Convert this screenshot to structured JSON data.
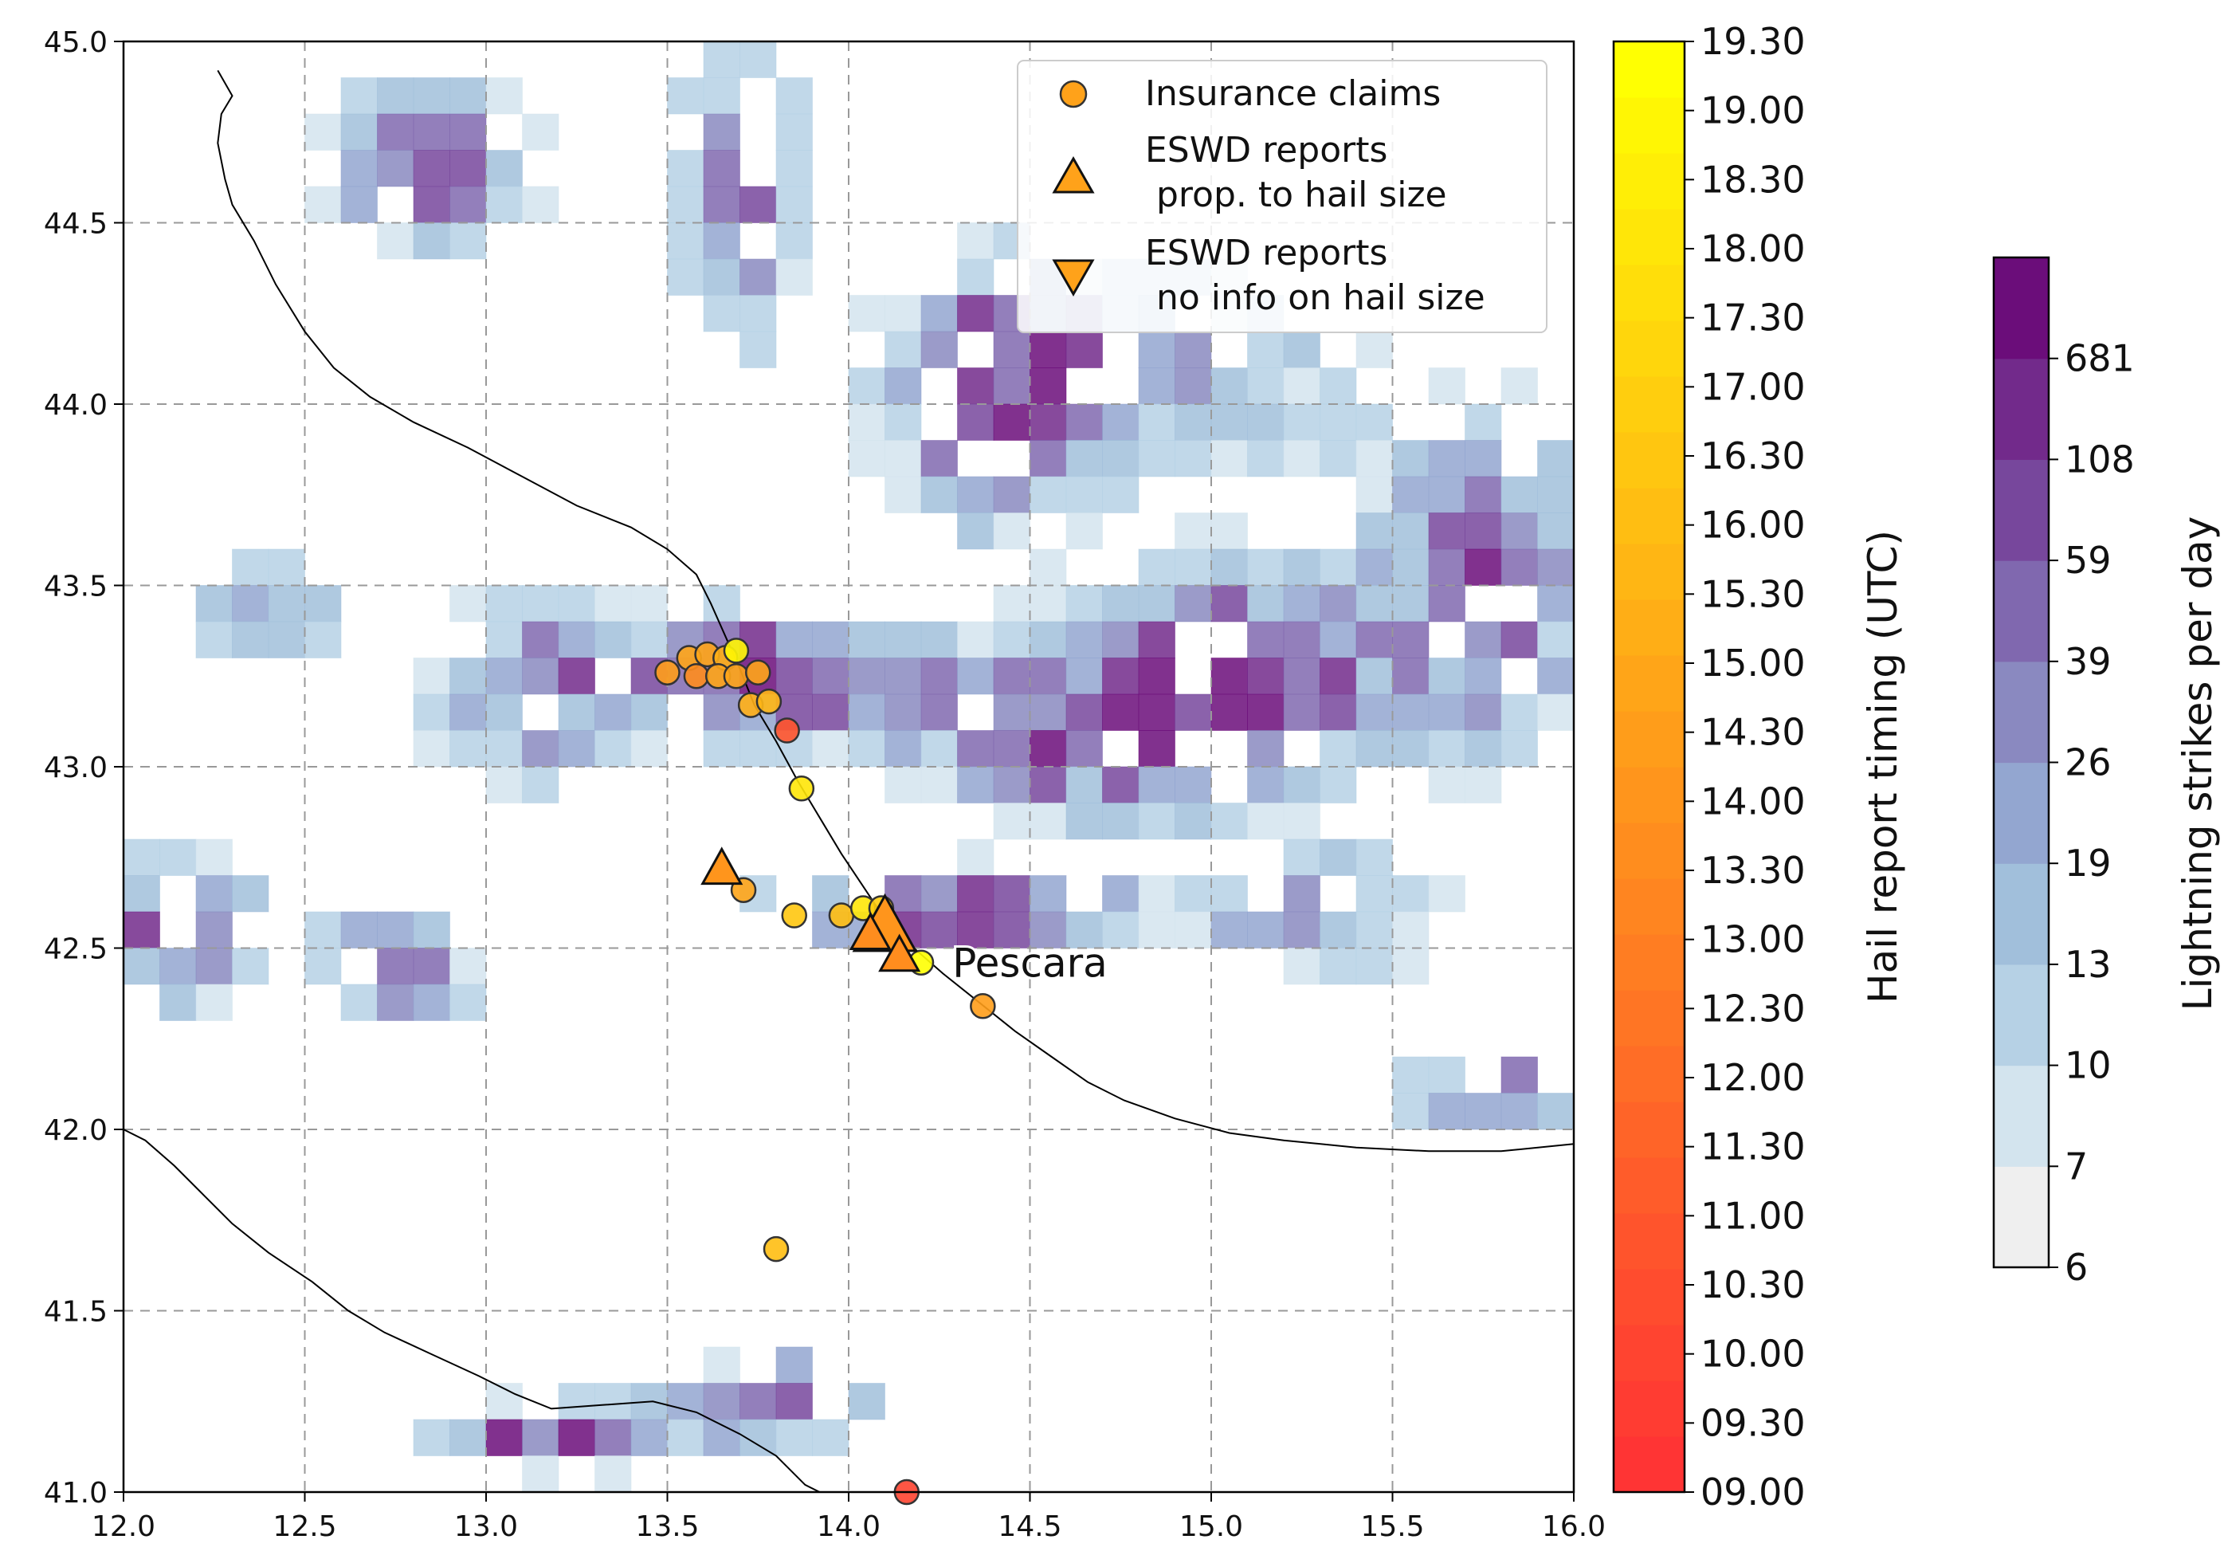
{
  "map": {
    "xlim": [
      12.0,
      16.0
    ],
    "ylim": [
      41.0,
      45.0
    ],
    "x_ticks": [
      {
        "v": 12.0,
        "label": "12.0"
      },
      {
        "v": 12.5,
        "label": "12.5"
      },
      {
        "v": 13.0,
        "label": "13.0"
      },
      {
        "v": 13.5,
        "label": "13.5"
      },
      {
        "v": 14.0,
        "label": "14.0"
      },
      {
        "v": 14.5,
        "label": "14.5"
      },
      {
        "v": 15.0,
        "label": "15.0"
      },
      {
        "v": 15.5,
        "label": "15.5"
      },
      {
        "v": 16.0,
        "label": "16.0"
      }
    ],
    "y_ticks": [
      {
        "v": 41.0,
        "label": "41.0"
      },
      {
        "v": 41.5,
        "label": "41.5"
      },
      {
        "v": 42.0,
        "label": "42.0"
      },
      {
        "v": 42.5,
        "label": "42.5"
      },
      {
        "v": 43.0,
        "label": "43.0"
      },
      {
        "v": 43.5,
        "label": "43.5"
      },
      {
        "v": 44.0,
        "label": "44.0"
      },
      {
        "v": 44.5,
        "label": "44.5"
      },
      {
        "v": 45.0,
        "label": "45.0"
      }
    ],
    "grid": "dashed",
    "city_label": {
      "text": "Pescara",
      "lon": 14.26,
      "lat": 42.46
    },
    "coastline": [
      [
        12.26,
        44.92
      ],
      [
        12.3,
        44.85
      ],
      [
        12.27,
        44.8
      ],
      [
        12.26,
        44.72
      ],
      [
        12.28,
        44.62
      ],
      [
        12.3,
        44.55
      ],
      [
        12.36,
        44.45
      ],
      [
        12.42,
        44.33
      ],
      [
        12.5,
        44.2
      ],
      [
        12.58,
        44.1
      ],
      [
        12.68,
        44.02
      ],
      [
        12.8,
        43.95
      ],
      [
        12.95,
        43.88
      ],
      [
        13.1,
        43.8
      ],
      [
        13.25,
        43.72
      ],
      [
        13.4,
        43.66
      ],
      [
        13.5,
        43.6
      ],
      [
        13.58,
        43.53
      ],
      [
        13.62,
        43.45
      ],
      [
        13.66,
        43.36
      ],
      [
        13.7,
        43.27
      ],
      [
        13.74,
        43.17
      ],
      [
        13.8,
        43.07
      ],
      [
        13.86,
        42.96
      ],
      [
        13.92,
        42.86
      ],
      [
        13.98,
        42.76
      ],
      [
        14.04,
        42.67
      ],
      [
        14.1,
        42.58
      ],
      [
        14.18,
        42.5
      ],
      [
        14.26,
        42.43
      ],
      [
        14.36,
        42.35
      ],
      [
        14.46,
        42.27
      ],
      [
        14.56,
        42.2
      ],
      [
        14.66,
        42.13
      ],
      [
        14.76,
        42.08
      ],
      [
        14.9,
        42.03
      ],
      [
        15.05,
        41.99
      ],
      [
        15.2,
        41.97
      ],
      [
        15.4,
        41.95
      ],
      [
        15.6,
        41.94
      ],
      [
        15.8,
        41.94
      ],
      [
        16.0,
        41.96
      ]
    ],
    "coastline_west": [
      [
        12.0,
        42.0
      ],
      [
        12.06,
        41.97
      ],
      [
        12.14,
        41.9
      ],
      [
        12.22,
        41.82
      ],
      [
        12.3,
        41.74
      ],
      [
        12.4,
        41.66
      ],
      [
        12.52,
        41.58
      ],
      [
        12.62,
        41.5
      ],
      [
        12.72,
        41.44
      ],
      [
        12.85,
        41.38
      ],
      [
        12.98,
        41.32
      ],
      [
        13.08,
        41.27
      ],
      [
        13.18,
        41.23
      ],
      [
        13.32,
        41.24
      ],
      [
        13.46,
        41.25
      ],
      [
        13.58,
        41.22
      ],
      [
        13.7,
        41.16
      ],
      [
        13.8,
        41.1
      ],
      [
        13.88,
        41.02
      ],
      [
        13.92,
        41.0
      ]
    ]
  },
  "lightning": {
    "label": "Lightning strikes per day",
    "bounds": [
      6,
      7,
      10,
      13,
      19,
      26,
      39,
      59,
      108,
      681
    ],
    "tick_labels": [
      "6",
      "7",
      "10",
      "13",
      "19",
      "26",
      "39",
      "59",
      "108",
      "681"
    ],
    "colors": [
      "#efefef",
      "#d3e4ee",
      "#b6d1e5",
      "#a1bfdb",
      "#93a6d0",
      "#8a89c0",
      "#8068af",
      "#77479c",
      "#722a8b",
      "#6b0d7a"
    ]
  },
  "timing": {
    "label": "Hail report timing (UTC)",
    "tick_labels": [
      "09.00",
      "09.30",
      "10.00",
      "10.30",
      "11.00",
      "11.30",
      "12.00",
      "12.30",
      "13.00",
      "13.30",
      "14.00",
      "14.30",
      "15.00",
      "15.30",
      "16.00",
      "16.30",
      "17.00",
      "17.30",
      "18.00",
      "18.30",
      "19.00",
      "19.30"
    ],
    "colors": [
      "#ff3434",
      "#ff3c32",
      "#ff4430",
      "#ff4c2e",
      "#ff542c",
      "#ff5c2a",
      "#ff6428",
      "#ff6d26",
      "#ff7524",
      "#ff7d22",
      "#ff8520",
      "#ff8d1e",
      "#ff951c",
      "#ff9d1a",
      "#ffa518",
      "#ffae16",
      "#ffb614",
      "#ffbe12",
      "#ffc610",
      "#ffce0e",
      "#ffd60c",
      "#ffde0a",
      "#ffe608",
      "#ffee06",
      "#fff604",
      "#ffff02"
    ]
  },
  "legend": {
    "items": [
      {
        "marker": "circle",
        "label": "Insurance claims"
      },
      {
        "marker": "triangle-up",
        "label": "ESWD reports\n prop. to hail size"
      },
      {
        "marker": "triangle-down",
        "label": "ESWD reports\n no info on hail size"
      }
    ]
  },
  "reports": {
    "claims": [
      {
        "lon": 13.5,
        "lat": 43.26,
        "t": 14.6
      },
      {
        "lon": 13.56,
        "lat": 43.3,
        "t": 14.9
      },
      {
        "lon": 13.61,
        "lat": 43.31,
        "t": 15.0
      },
      {
        "lon": 13.66,
        "lat": 43.3,
        "t": 15.1
      },
      {
        "lon": 13.69,
        "lat": 43.32,
        "t": 18.9
      },
      {
        "lon": 13.58,
        "lat": 43.25,
        "t": 13.6
      },
      {
        "lon": 13.64,
        "lat": 43.25,
        "t": 14.7
      },
      {
        "lon": 13.69,
        "lat": 43.25,
        "t": 14.9
      },
      {
        "lon": 13.75,
        "lat": 43.26,
        "t": 15.0
      },
      {
        "lon": 13.73,
        "lat": 43.17,
        "t": 15.3
      },
      {
        "lon": 13.78,
        "lat": 43.18,
        "t": 15.5
      },
      {
        "lon": 13.83,
        "lat": 43.1,
        "t": 11.0
      },
      {
        "lon": 13.87,
        "lat": 42.94,
        "t": 18.0
      },
      {
        "lon": 13.71,
        "lat": 42.66,
        "t": 14.8
      },
      {
        "lon": 13.85,
        "lat": 42.59,
        "t": 16.4
      },
      {
        "lon": 13.98,
        "lat": 42.59,
        "t": 16.2
      },
      {
        "lon": 14.04,
        "lat": 42.61,
        "t": 17.9
      },
      {
        "lon": 14.09,
        "lat": 42.61,
        "t": 16.8
      },
      {
        "lon": 14.08,
        "lat": 42.53,
        "t": 13.4
      },
      {
        "lon": 14.2,
        "lat": 42.46,
        "t": 19.2
      },
      {
        "lon": 14.37,
        "lat": 42.34,
        "t": 14.6
      },
      {
        "lon": 13.8,
        "lat": 41.67,
        "t": 16.0
      },
      {
        "lon": 14.16,
        "lat": 41.0,
        "t": 10.0
      }
    ],
    "eswd_sized": [
      {
        "lon": 13.65,
        "lat": 42.72,
        "t": 14.0,
        "size": 1.0
      },
      {
        "lon": 14.1,
        "lat": 42.56,
        "t": 14.1,
        "size": 1.6
      },
      {
        "lon": 14.06,
        "lat": 42.54,
        "t": 13.8,
        "size": 1.0
      },
      {
        "lon": 14.14,
        "lat": 42.48,
        "t": 13.5,
        "size": 1.0
      }
    ]
  }
}
